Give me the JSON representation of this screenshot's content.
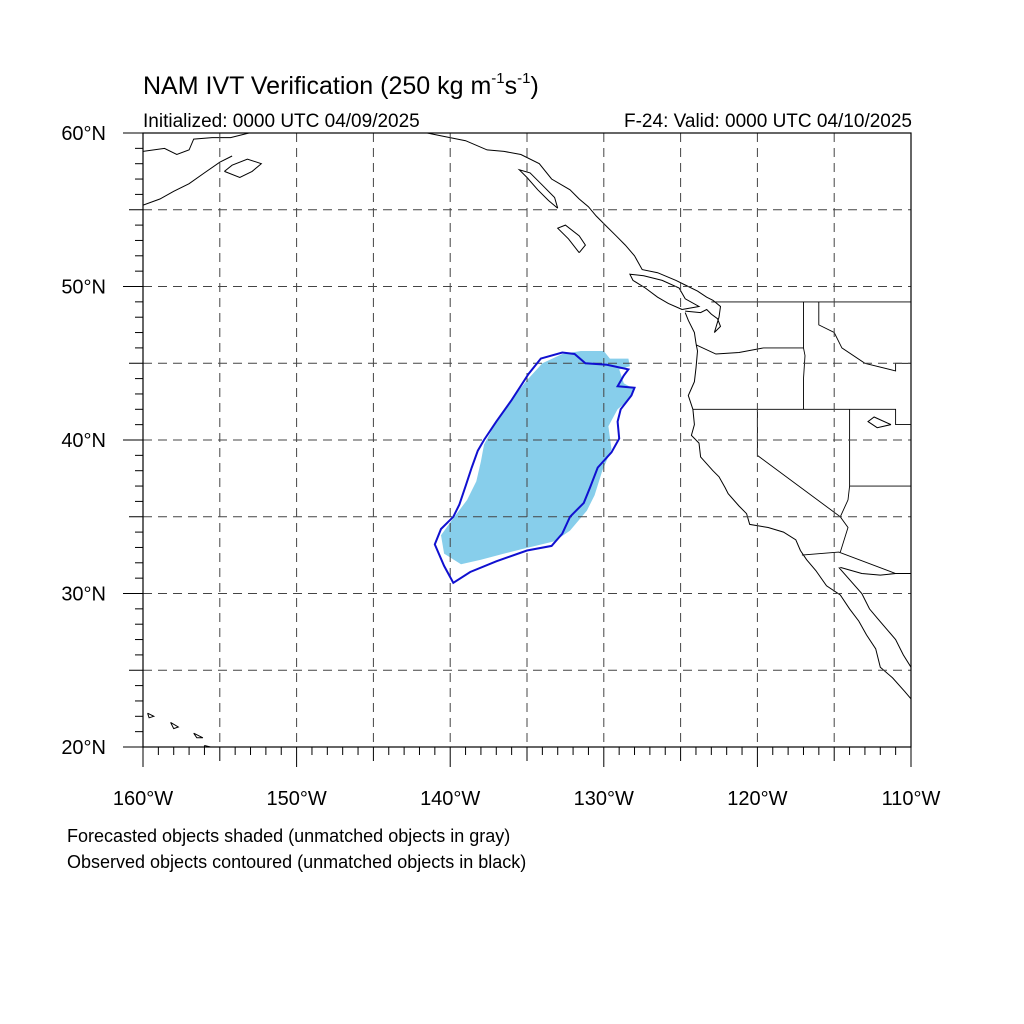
{
  "title": {
    "text": "NAM IVT Verification (250 kg m",
    "sup1": "-1",
    "mid": "s",
    "sup2": "-1",
    "end": ")"
  },
  "subtitle_left": "Initialized: 0000 UTC 04/09/2025",
  "subtitle_right": "F-24: Valid: 0000 UTC 04/10/2025",
  "caption_lines": [
    "Forecasted objects shaded (unmatched objects in gray)",
    "Observed objects contoured (unmatched objects in black)"
  ],
  "map": {
    "lon_range": [
      -160,
      -110
    ],
    "lat_range": [
      20,
      60
    ],
    "lon_ticks": [
      "160°W",
      "150°W",
      "140°W",
      "130°W",
      "120°W",
      "110°W"
    ],
    "lat_ticks": [
      "60°N",
      "50°N",
      "40°N",
      "30°N",
      "20°N"
    ],
    "grid_spacing_deg": 5,
    "colors": {
      "forecast_fill": "#87ceeb",
      "observed_contour": "#1010d0",
      "coast": "#000000"
    },
    "forecast_object": [
      [
        -131.5,
        45.8
      ],
      [
        -130.0,
        45.8
      ],
      [
        -129.6,
        45.3
      ],
      [
        -128.4,
        45.3
      ],
      [
        -128.3,
        44.8
      ],
      [
        -129.0,
        44.6
      ],
      [
        -128.7,
        43.7
      ],
      [
        -128.0,
        43.3
      ],
      [
        -128.4,
        42.6
      ],
      [
        -129.1,
        42.0
      ],
      [
        -129.7,
        40.9
      ],
      [
        -129.5,
        39.4
      ],
      [
        -130.1,
        38.0
      ],
      [
        -130.6,
        36.4
      ],
      [
        -131.1,
        35.4
      ],
      [
        -132.2,
        34.1
      ],
      [
        -133.2,
        33.4
      ],
      [
        -135.3,
        32.9
      ],
      [
        -136.5,
        32.6
      ],
      [
        -138.0,
        32.2
      ],
      [
        -139.3,
        31.9
      ],
      [
        -140.4,
        32.6
      ],
      [
        -140.6,
        33.8
      ],
      [
        -139.8,
        34.9
      ],
      [
        -138.9,
        36.1
      ],
      [
        -138.3,
        37.3
      ],
      [
        -138.0,
        38.6
      ],
      [
        -137.8,
        39.7
      ],
      [
        -137.1,
        41.0
      ],
      [
        -136.1,
        42.5
      ],
      [
        -135.0,
        43.9
      ],
      [
        -134.0,
        45.0
      ],
      [
        -132.7,
        45.6
      ]
    ],
    "observed_object": [
      [
        -134.1,
        45.3
      ],
      [
        -132.7,
        45.7
      ],
      [
        -131.9,
        45.6
      ],
      [
        -131.2,
        45.0
      ],
      [
        -129.8,
        44.9
      ],
      [
        -128.4,
        44.6
      ],
      [
        -128.7,
        44.2
      ],
      [
        -129.1,
        43.5
      ],
      [
        -128.0,
        43.4
      ],
      [
        -128.2,
        42.9
      ],
      [
        -128.9,
        42.0
      ],
      [
        -129.1,
        41.2
      ],
      [
        -129.0,
        40.1
      ],
      [
        -129.5,
        39.2
      ],
      [
        -130.4,
        38.2
      ],
      [
        -130.9,
        36.9
      ],
      [
        -131.3,
        35.9
      ],
      [
        -132.2,
        35.0
      ],
      [
        -132.7,
        33.9
      ],
      [
        -133.4,
        33.1
      ],
      [
        -135.0,
        32.8
      ],
      [
        -137.0,
        32.1
      ],
      [
        -138.7,
        31.4
      ],
      [
        -139.8,
        30.7
      ],
      [
        -140.4,
        31.8
      ],
      [
        -141.0,
        33.2
      ],
      [
        -140.6,
        34.2
      ],
      [
        -139.8,
        35.0
      ],
      [
        -139.4,
        35.8
      ],
      [
        -139.0,
        37.0
      ],
      [
        -138.6,
        38.2
      ],
      [
        -138.2,
        39.3
      ],
      [
        -137.8,
        40.0
      ],
      [
        -137.0,
        41.2
      ],
      [
        -136.0,
        42.6
      ],
      [
        -134.9,
        44.3
      ]
    ],
    "coastlines": [
      [
        [
          -109.8,
          22.9
        ],
        [
          -110.4,
          23.6
        ],
        [
          -111.2,
          24.5
        ],
        [
          -112.0,
          25.2
        ],
        [
          -112.3,
          26.4
        ],
        [
          -112.9,
          27.3
        ],
        [
          -113.4,
          28.2
        ],
        [
          -114.0,
          29.0
        ],
        [
          -114.6,
          29.9
        ],
        [
          -115.5,
          30.5
        ],
        [
          -116.2,
          31.5
        ],
        [
          -116.8,
          32.2
        ],
        [
          -117.2,
          32.8
        ],
        [
          -117.5,
          33.5
        ],
        [
          -118.3,
          34.0
        ],
        [
          -119.3,
          34.3
        ],
        [
          -120.5,
          34.5
        ],
        [
          -120.7,
          35.2
        ],
        [
          -121.2,
          35.7
        ],
        [
          -121.9,
          36.5
        ],
        [
          -122.1,
          36.9
        ],
        [
          -122.5,
          37.6
        ],
        [
          -122.9,
          38.0
        ],
        [
          -123.7,
          38.9
        ],
        [
          -123.8,
          39.8
        ],
        [
          -124.3,
          40.3
        ],
        [
          -124.1,
          41.0
        ],
        [
          -124.2,
          42.0
        ],
        [
          -124.5,
          42.9
        ],
        [
          -124.1,
          43.8
        ],
        [
          -124.0,
          44.7
        ],
        [
          -123.9,
          45.8
        ],
        [
          -124.0,
          46.3
        ],
        [
          -124.1,
          47.0
        ],
        [
          -124.5,
          47.8
        ],
        [
          -124.7,
          48.3
        ]
      ],
      [
        [
          -124.7,
          48.4
        ],
        [
          -123.7,
          48.3
        ],
        [
          -123.3,
          48.5
        ],
        [
          -123.0,
          48.2
        ],
        [
          -122.6,
          47.9
        ],
        [
          -122.4,
          47.4
        ],
        [
          -122.8,
          47.0
        ],
        [
          -122.5,
          48.0
        ],
        [
          -122.4,
          48.7
        ],
        [
          -122.9,
          49.1
        ],
        [
          -123.3,
          49.3
        ],
        [
          -123.9,
          49.7
        ],
        [
          -124.7,
          50.1
        ],
        [
          -125.3,
          50.4
        ],
        [
          -126.5,
          50.9
        ],
        [
          -127.5,
          51.1
        ],
        [
          -128.0,
          52.0
        ],
        [
          -128.6,
          52.7
        ],
        [
          -129.2,
          53.3
        ],
        [
          -129.9,
          54.0
        ],
        [
          -130.5,
          54.6
        ],
        [
          -131.0,
          55.2
        ],
        [
          -131.6,
          55.7
        ],
        [
          -132.2,
          56.3
        ],
        [
          -133.4,
          57.0
        ],
        [
          -134.2,
          58.0
        ],
        [
          -135.4,
          58.6
        ],
        [
          -136.5,
          58.8
        ],
        [
          -137.6,
          58.9
        ],
        [
          -139.0,
          59.5
        ],
        [
          -140.5,
          59.8
        ],
        [
          -141.5,
          60.0
        ]
      ],
      [
        [
          -124.9,
          48.5
        ],
        [
          -125.8,
          48.9
        ],
        [
          -126.5,
          49.3
        ],
        [
          -127.3,
          49.9
        ],
        [
          -128.1,
          50.4
        ],
        [
          -128.3,
          50.8
        ],
        [
          -127.4,
          50.7
        ],
        [
          -126.2,
          50.4
        ],
        [
          -125.1,
          49.9
        ],
        [
          -124.7,
          49.2
        ],
        [
          -123.8,
          48.7
        ],
        [
          -124.9,
          48.5
        ]
      ],
      [
        [
          -131.6,
          52.2
        ],
        [
          -131.2,
          52.7
        ],
        [
          -131.6,
          53.3
        ],
        [
          -132.5,
          54.0
        ],
        [
          -133.0,
          53.8
        ],
        [
          -132.3,
          53.1
        ],
        [
          -131.6,
          52.2
        ]
      ],
      [
        [
          -133.0,
          55.1
        ],
        [
          -133.6,
          55.6
        ],
        [
          -134.3,
          56.3
        ],
        [
          -135.0,
          57.1
        ],
        [
          -135.5,
          57.6
        ],
        [
          -134.8,
          57.4
        ],
        [
          -134.0,
          56.6
        ],
        [
          -133.2,
          55.8
        ],
        [
          -133.0,
          55.1
        ]
      ],
      [
        [
          -114.7,
          31.7
        ],
        [
          -114.0,
          30.9
        ],
        [
          -113.2,
          30.0
        ],
        [
          -112.7,
          29.0
        ],
        [
          -112.2,
          28.4
        ],
        [
          -111.6,
          27.7
        ],
        [
          -111.0,
          27.0
        ],
        [
          -110.5,
          26.0
        ],
        [
          -110.0,
          25.2
        ],
        [
          -109.4,
          24.0
        ]
      ],
      [
        [
          -114.6,
          31.7
        ],
        [
          -113.2,
          31.3
        ],
        [
          -112.0,
          31.2
        ],
        [
          -111.0,
          31.3
        ],
        [
          -109.5,
          31.3
        ]
      ],
      [
        [
          -158.2,
          21.6
        ],
        [
          -157.7,
          21.3
        ],
        [
          -158.0,
          21.2
        ],
        [
          -158.2,
          21.6
        ]
      ],
      [
        [
          -156.7,
          20.9
        ],
        [
          -156.1,
          20.6
        ],
        [
          -156.5,
          20.6
        ],
        [
          -156.7,
          20.9
        ]
      ],
      [
        [
          -156.0,
          20.1
        ],
        [
          -155.2,
          19.9
        ],
        [
          -154.9,
          19.6
        ],
        [
          -155.9,
          19.2
        ],
        [
          -156.0,
          20.1
        ]
      ],
      [
        [
          -159.7,
          22.2
        ],
        [
          -159.3,
          22.0
        ],
        [
          -159.6,
          21.9
        ],
        [
          -159.7,
          22.2
        ]
      ],
      [
        [
          -160.0,
          58.8
        ],
        [
          -158.6,
          59.0
        ],
        [
          -157.8,
          58.6
        ],
        [
          -157.0,
          58.9
        ],
        [
          -156.7,
          59.6
        ],
        [
          -155.5,
          59.7
        ],
        [
          -154.3,
          59.7
        ],
        [
          -153.1,
          60.0
        ]
      ],
      [
        [
          -160.0,
          55.3
        ],
        [
          -158.9,
          55.7
        ],
        [
          -158.0,
          56.2
        ],
        [
          -157.0,
          56.7
        ],
        [
          -156.0,
          57.4
        ],
        [
          -155.0,
          58.1
        ],
        [
          -154.2,
          58.5
        ]
      ],
      [
        [
          -154.7,
          57.5
        ],
        [
          -153.7,
          57.1
        ],
        [
          -152.9,
          57.5
        ],
        [
          -152.3,
          58.0
        ],
        [
          -153.2,
          58.3
        ],
        [
          -154.2,
          57.9
        ],
        [
          -154.7,
          57.5
        ]
      ],
      [
        [
          -111.3,
          41.0
        ],
        [
          -112.4,
          41.5
        ],
        [
          -112.8,
          41.2
        ],
        [
          -112.2,
          40.8
        ],
        [
          -111.3,
          41.0
        ]
      ]
    ],
    "borders": [
      [
        [
          -124.2,
          42.0
        ],
        [
          -120.0,
          42.0
        ],
        [
          -117.0,
          42.0
        ],
        [
          -111.0,
          42.0
        ],
        [
          -111.0,
          41.0
        ],
        [
          -109.8,
          41.0
        ]
      ],
      [
        [
          -120.0,
          42.0
        ],
        [
          -120.0,
          39.0
        ],
        [
          -114.6,
          35.0
        ],
        [
          -114.1,
          34.3
        ],
        [
          -114.6,
          32.7
        ]
      ],
      [
        [
          -117.1,
          32.5
        ],
        [
          -114.7,
          32.7
        ],
        [
          -111.0,
          31.3
        ],
        [
          -109.8,
          31.3
        ]
      ],
      [
        [
          -123.0,
          49.0
        ],
        [
          -117.0,
          49.0
        ],
        [
          -109.8,
          49.0
        ]
      ],
      [
        [
          -117.0,
          49.0
        ],
        [
          -117.0,
          46.0
        ],
        [
          -116.9,
          45.5
        ],
        [
          -117.0,
          44.0
        ],
        [
          -117.0,
          42.0
        ]
      ],
      [
        [
          -124.0,
          46.2
        ],
        [
          -122.7,
          45.6
        ],
        [
          -121.2,
          45.7
        ],
        [
          -119.6,
          46.0
        ],
        [
          -117.0,
          46.0
        ]
      ],
      [
        [
          -114.0,
          42.0
        ],
        [
          -114.0,
          37.0
        ],
        [
          -114.1,
          36.1
        ],
        [
          -114.6,
          35.0
        ]
      ],
      [
        [
          -116.0,
          49.0
        ],
        [
          -116.0,
          47.5
        ],
        [
          -115.0,
          47.0
        ],
        [
          -114.5,
          46.0
        ],
        [
          -113.0,
          45.0
        ],
        [
          -111.0,
          44.5
        ],
        [
          -111.0,
          45.0
        ],
        [
          -110.0,
          45.0
        ]
      ],
      [
        [
          -114.0,
          37.0
        ],
        [
          -109.8,
          37.0
        ]
      ]
    ]
  }
}
